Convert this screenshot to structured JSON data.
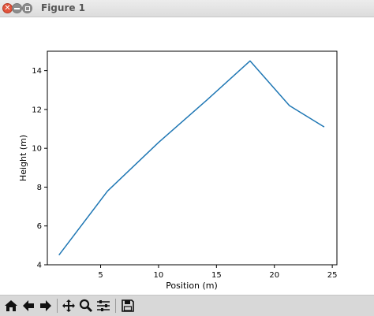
{
  "window": {
    "title": "Figure 1"
  },
  "colors": {
    "line": "#1f77b4",
    "titlebar_close": "#e2533b",
    "toolbar_bg": "#d8d8d8"
  },
  "toolbar": {
    "icons": [
      "home-icon",
      "back-icon",
      "forward-icon",
      "pan-icon",
      "zoom-icon",
      "configure-subplots-icon",
      "save-icon"
    ]
  },
  "chart_data": {
    "type": "line",
    "title": "",
    "xlabel": "Position (m)",
    "ylabel": "Height (m)",
    "xlim": [
      0.4,
      25.4
    ],
    "ylim": [
      4,
      15
    ],
    "x_ticks": [
      5,
      10,
      15,
      20,
      25
    ],
    "y_ticks": [
      4,
      6,
      8,
      10,
      12,
      14
    ],
    "grid": false,
    "series": [
      {
        "x": [
          1.4,
          5.6,
          10.0,
          14.2,
          17.9,
          21.3,
          24.3
        ],
        "y": [
          4.5,
          7.8,
          10.3,
          12.5,
          14.5,
          12.2,
          11.1
        ]
      }
    ]
  }
}
